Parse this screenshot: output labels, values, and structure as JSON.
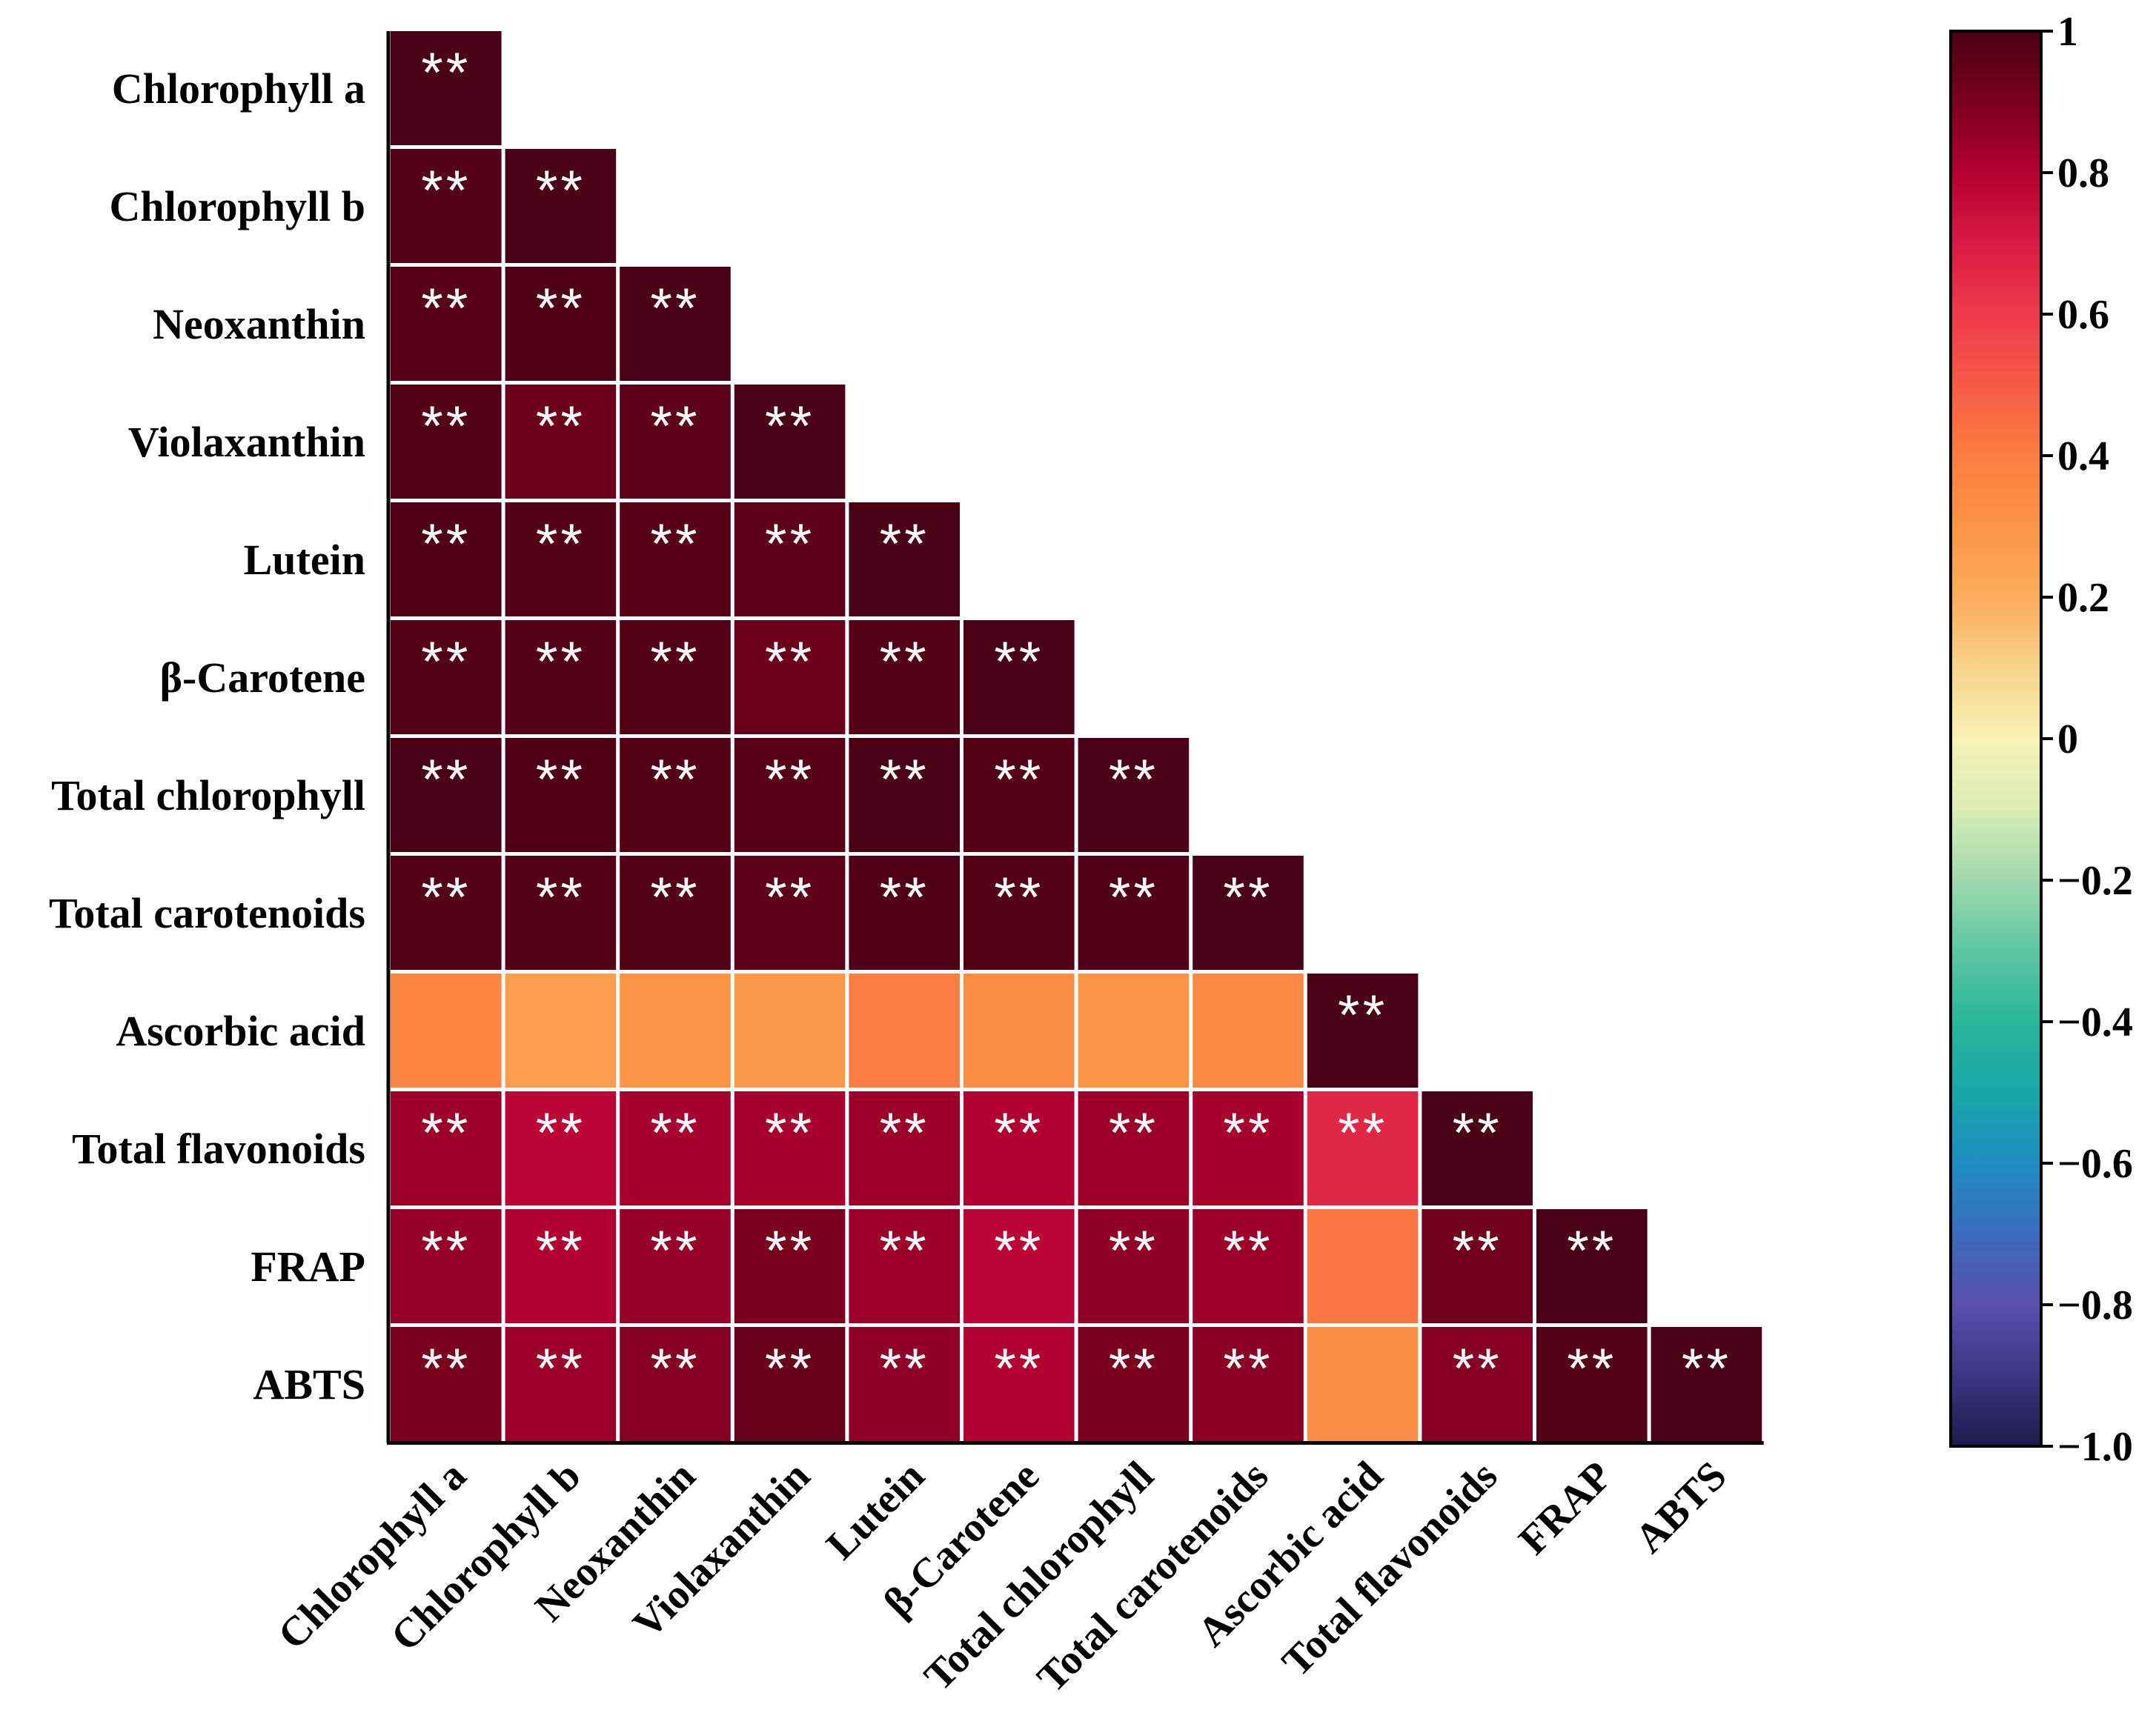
{
  "chart_data": {
    "type": "heatmap",
    "title": "",
    "variables": [
      "Chlorophyll a",
      "Chlorophyll b",
      "Neoxanthin",
      "Violaxanthin",
      "Lutein",
      "β-Carotene",
      "Total chlorophyll",
      "Total carotenoids",
      "Ascorbic acid",
      "Total flavonoids",
      "FRAP",
      "ABTS"
    ],
    "matrix": [
      [
        1.0
      ],
      [
        0.98,
        1.0
      ],
      [
        0.97,
        0.99,
        1.0
      ],
      [
        0.98,
        0.93,
        0.96,
        1.0
      ],
      [
        0.99,
        0.98,
        0.97,
        0.96,
        1.0
      ],
      [
        0.98,
        0.98,
        0.98,
        0.93,
        0.98,
        1.0
      ],
      [
        1.0,
        0.99,
        0.98,
        0.97,
        1.0,
        0.98,
        1.0
      ],
      [
        0.98,
        0.98,
        0.98,
        0.96,
        0.99,
        0.98,
        0.99,
        1.0
      ],
      [
        0.36,
        0.26,
        0.3,
        0.28,
        0.4,
        0.33,
        0.3,
        0.35,
        1.0
      ],
      [
        0.84,
        0.78,
        0.82,
        0.82,
        0.84,
        0.8,
        0.84,
        0.82,
        0.66,
        1.0
      ],
      [
        0.85,
        0.8,
        0.85,
        0.9,
        0.84,
        0.78,
        0.86,
        0.84,
        0.42,
        0.92,
        1.0
      ],
      [
        0.9,
        0.84,
        0.88,
        0.94,
        0.86,
        0.8,
        0.9,
        0.87,
        0.32,
        0.88,
        0.98,
        1.0
      ]
    ],
    "significance": [
      [
        "**"
      ],
      [
        "**",
        "**"
      ],
      [
        "**",
        "**",
        "**"
      ],
      [
        "**",
        "**",
        "**",
        "**"
      ],
      [
        "**",
        "**",
        "**",
        "**",
        "**"
      ],
      [
        "**",
        "**",
        "**",
        "**",
        "**",
        "**"
      ],
      [
        "**",
        "**",
        "**",
        "**",
        "**",
        "**",
        "**"
      ],
      [
        "**",
        "**",
        "**",
        "**",
        "**",
        "**",
        "**",
        "**"
      ],
      [
        "",
        "",
        "",
        "",
        "",
        "",
        "",
        "",
        "**"
      ],
      [
        "**",
        "**",
        "**",
        "**",
        "**",
        "**",
        "**",
        "**",
        "**",
        "**"
      ],
      [
        "**",
        "**",
        "**",
        "**",
        "**",
        "**",
        "**",
        "**",
        "",
        "**",
        "**"
      ],
      [
        "**",
        "**",
        "**",
        "**",
        "**",
        "**",
        "**",
        "**",
        "",
        "**",
        "**",
        "**"
      ]
    ],
    "colorbar": {
      "range": [
        -1.0,
        1.0
      ],
      "ticks": [
        1,
        0.8,
        0.6,
        0.4,
        0.2,
        0,
        -0.2,
        -0.4,
        -0.6,
        -0.8,
        -1.0
      ],
      "tick_labels": [
        "1",
        "0.8",
        "0.6",
        "0.4",
        "0.2",
        "0",
        "−0.2",
        "−0.4",
        "−0.6",
        "−0.8",
        "−1.0"
      ],
      "stops": [
        {
          "v": 1.0,
          "color": "#4a0015"
        },
        {
          "v": 0.9,
          "color": "#7a001e"
        },
        {
          "v": 0.8,
          "color": "#b30032"
        },
        {
          "v": 0.7,
          "color": "#d91a44"
        },
        {
          "v": 0.6,
          "color": "#ee3a4a"
        },
        {
          "v": 0.5,
          "color": "#f65b47"
        },
        {
          "v": 0.4,
          "color": "#fb7d41"
        },
        {
          "v": 0.3,
          "color": "#fc9446"
        },
        {
          "v": 0.2,
          "color": "#fcab5c"
        },
        {
          "v": 0.1,
          "color": "#f8d48a"
        },
        {
          "v": 0.0,
          "color": "#f6f2b4"
        },
        {
          "v": -0.1,
          "color": "#d9edb4"
        },
        {
          "v": -0.2,
          "color": "#9fd9ae"
        },
        {
          "v": -0.3,
          "color": "#5cc7a4"
        },
        {
          "v": -0.4,
          "color": "#2ab69a"
        },
        {
          "v": -0.5,
          "color": "#1aa6a8"
        },
        {
          "v": -0.6,
          "color": "#1f8cc2"
        },
        {
          "v": -0.7,
          "color": "#3a6cbd"
        },
        {
          "v": -0.8,
          "color": "#5850ac"
        },
        {
          "v": -0.9,
          "color": "#3d3584"
        },
        {
          "v": -1.0,
          "color": "#1d1b4a"
        }
      ]
    }
  }
}
